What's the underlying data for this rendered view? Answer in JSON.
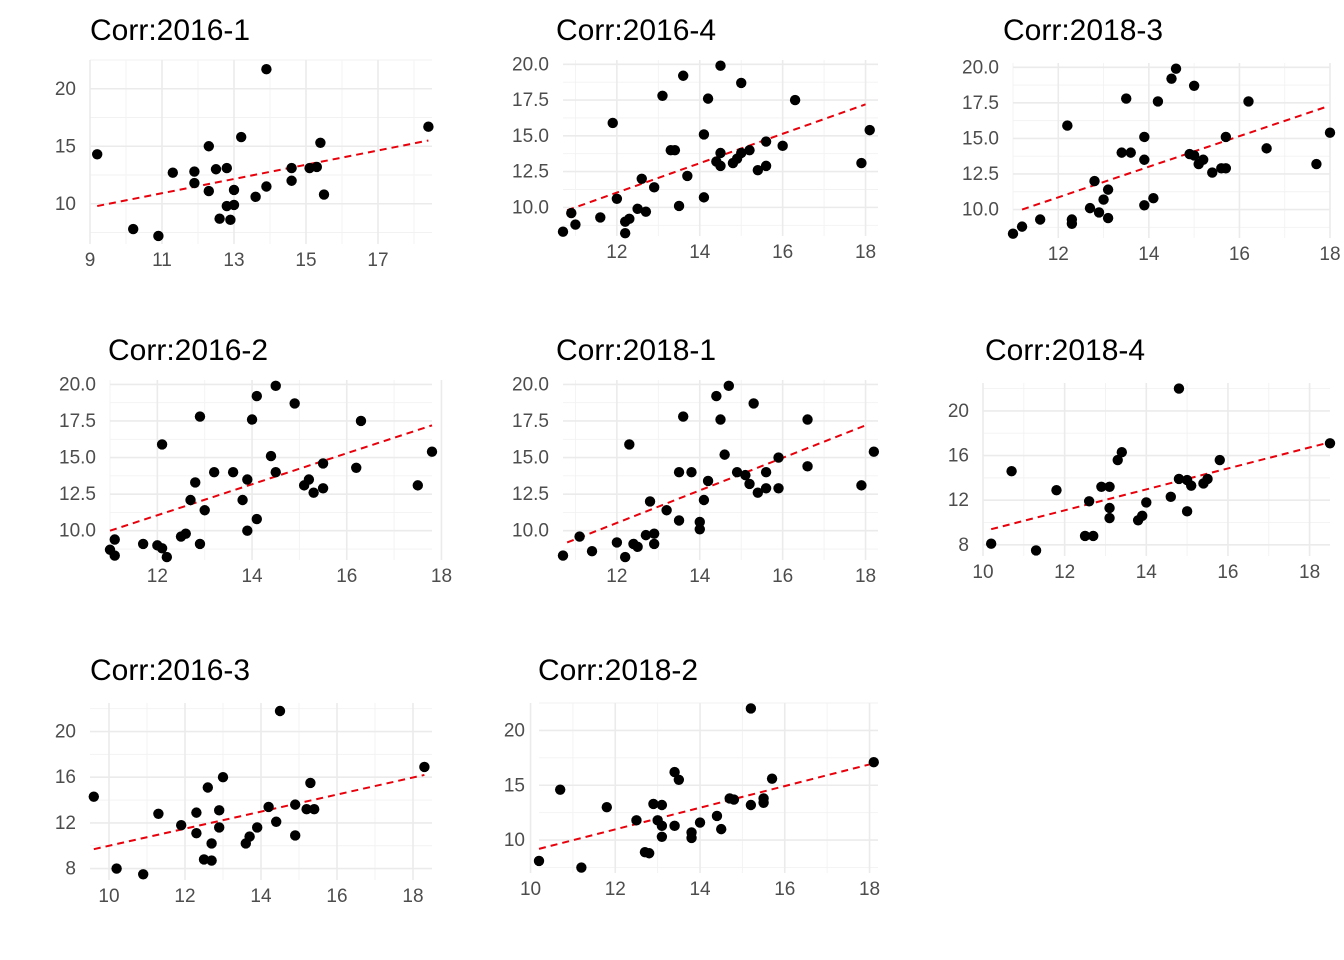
{
  "chart_data": [
    {
      "type": "scatter",
      "title": "Corr:2016-1",
      "xlim": [
        9,
        18.5
      ],
      "ylim": [
        6.5,
        22.5
      ],
      "x_ticks": [
        9,
        11,
        13,
        15,
        17
      ],
      "y_ticks": [
        10,
        15,
        20
      ],
      "x_tick_labels": [
        "9",
        "11",
        "13",
        "15",
        "17"
      ],
      "y_tick_labels": [
        "10",
        "15",
        "20"
      ],
      "points": [
        [
          9.2,
          14.3
        ],
        [
          10.2,
          7.8
        ],
        [
          10.9,
          7.2
        ],
        [
          11.3,
          12.7
        ],
        [
          11.9,
          11.8
        ],
        [
          11.9,
          12.8
        ],
        [
          12.3,
          11.1
        ],
        [
          12.3,
          15.0
        ],
        [
          12.5,
          13.0
        ],
        [
          12.6,
          8.7
        ],
        [
          12.8,
          9.8
        ],
        [
          12.8,
          13.1
        ],
        [
          12.9,
          8.6
        ],
        [
          13.0,
          11.2
        ],
        [
          13.0,
          9.9
        ],
        [
          13.2,
          15.8
        ],
        [
          13.6,
          10.6
        ],
        [
          13.9,
          11.5
        ],
        [
          13.9,
          21.7
        ],
        [
          14.6,
          12.0
        ],
        [
          14.6,
          13.1
        ],
        [
          15.1,
          13.1
        ],
        [
          15.3,
          13.2
        ],
        [
          15.4,
          15.3
        ],
        [
          15.5,
          10.8
        ],
        [
          18.4,
          16.7
        ]
      ],
      "fit": [
        [
          9.2,
          9.8
        ],
        [
          18.4,
          15.5
        ]
      ]
    },
    {
      "type": "scatter",
      "title": "Corr:2016-4",
      "xlim": [
        10.7,
        18.3
      ],
      "ylim": [
        8.0,
        20.3
      ],
      "x_ticks": [
        12,
        14,
        16,
        18
      ],
      "y_ticks": [
        10,
        12.5,
        15,
        17.5,
        20
      ],
      "x_tick_labels": [
        "12",
        "14",
        "16",
        "18"
      ],
      "y_tick_labels": [
        "10.0",
        "12.5",
        "15.0",
        "17.5",
        "20.0"
      ],
      "points": [
        [
          10.7,
          8.3
        ],
        [
          10.9,
          9.6
        ],
        [
          11.0,
          8.8
        ],
        [
          11.6,
          9.3
        ],
        [
          11.9,
          15.9
        ],
        [
          12.0,
          10.6
        ],
        [
          12.2,
          8.2
        ],
        [
          12.2,
          9.0
        ],
        [
          12.3,
          9.2
        ],
        [
          12.5,
          9.9
        ],
        [
          12.6,
          12.0
        ],
        [
          12.7,
          9.7
        ],
        [
          12.9,
          11.4
        ],
        [
          13.1,
          17.8
        ],
        [
          13.3,
          14.0
        ],
        [
          13.4,
          14.0
        ],
        [
          13.5,
          10.1
        ],
        [
          13.6,
          19.2
        ],
        [
          13.7,
          12.2
        ],
        [
          14.1,
          10.7
        ],
        [
          14.1,
          15.1
        ],
        [
          14.2,
          17.6
        ],
        [
          14.4,
          13.2
        ],
        [
          14.5,
          12.9
        ],
        [
          14.5,
          13.8
        ],
        [
          14.5,
          19.9
        ],
        [
          14.8,
          13.1
        ],
        [
          14.9,
          13.4
        ],
        [
          15.0,
          18.7
        ],
        [
          15.0,
          13.8
        ],
        [
          15.2,
          14.0
        ],
        [
          15.4,
          12.6
        ],
        [
          15.6,
          12.9
        ],
        [
          15.6,
          14.6
        ],
        [
          16.0,
          14.3
        ],
        [
          16.3,
          17.5
        ],
        [
          17.9,
          13.1
        ],
        [
          18.1,
          15.4
        ]
      ],
      "fit": [
        [
          10.8,
          9.8
        ],
        [
          18.0,
          17.2
        ]
      ]
    },
    {
      "type": "scatter",
      "title": "Corr:2018-3",
      "xlim": [
        11.0,
        18.0
      ],
      "ylim": [
        8.0,
        20.3
      ],
      "x_ticks": [
        12,
        14,
        16,
        18
      ],
      "y_ticks": [
        10,
        12.5,
        15,
        17.5,
        20
      ],
      "x_tick_labels": [
        "12",
        "14",
        "16",
        "18"
      ],
      "y_tick_labels": [
        "10.0",
        "12.5",
        "15.0",
        "17.5",
        "20.0"
      ],
      "points": [
        [
          11.0,
          8.3
        ],
        [
          11.2,
          8.8
        ],
        [
          11.6,
          9.3
        ],
        [
          12.2,
          15.9
        ],
        [
          12.3,
          9.0
        ],
        [
          12.3,
          9.3
        ],
        [
          12.7,
          10.1
        ],
        [
          12.8,
          12.0
        ],
        [
          12.9,
          9.8
        ],
        [
          13.0,
          10.7
        ],
        [
          13.1,
          11.4
        ],
        [
          13.1,
          9.4
        ],
        [
          13.4,
          14.0
        ],
        [
          13.5,
          17.8
        ],
        [
          13.6,
          14.0
        ],
        [
          13.9,
          15.1
        ],
        [
          13.9,
          13.5
        ],
        [
          13.9,
          10.3
        ],
        [
          14.1,
          10.8
        ],
        [
          14.2,
          17.6
        ],
        [
          14.5,
          19.2
        ],
        [
          14.6,
          19.9
        ],
        [
          14.9,
          13.9
        ],
        [
          15.0,
          18.7
        ],
        [
          15.0,
          13.8
        ],
        [
          15.1,
          13.2
        ],
        [
          15.2,
          13.5
        ],
        [
          15.4,
          12.6
        ],
        [
          15.6,
          12.9
        ],
        [
          15.7,
          12.9
        ],
        [
          15.7,
          15.1
        ],
        [
          16.2,
          17.6
        ],
        [
          16.6,
          14.3
        ],
        [
          17.7,
          13.2
        ],
        [
          18.0,
          15.4
        ]
      ],
      "fit": [
        [
          11.2,
          10.0
        ],
        [
          17.9,
          17.2
        ]
      ]
    },
    {
      "type": "scatter",
      "title": "Corr:2016-2",
      "xlim": [
        11.0,
        17.8
      ],
      "ylim": [
        8.0,
        20.3
      ],
      "x_ticks": [
        12,
        14,
        16,
        18
      ],
      "y_ticks": [
        10,
        12.5,
        15,
        17.5,
        20
      ],
      "x_tick_labels": [
        "12",
        "14",
        "16",
        "18"
      ],
      "y_tick_labels": [
        "10.0",
        "12.5",
        "15.0",
        "17.5",
        "20.0"
      ],
      "points": [
        [
          11.0,
          8.7
        ],
        [
          11.1,
          8.3
        ],
        [
          11.1,
          9.4
        ],
        [
          11.7,
          9.1
        ],
        [
          12.0,
          9.0
        ],
        [
          12.1,
          8.8
        ],
        [
          12.1,
          15.9
        ],
        [
          12.2,
          8.2
        ],
        [
          12.5,
          9.6
        ],
        [
          12.6,
          9.8
        ],
        [
          12.7,
          12.1
        ],
        [
          12.8,
          13.3
        ],
        [
          12.9,
          9.1
        ],
        [
          12.9,
          17.8
        ],
        [
          13.0,
          11.4
        ],
        [
          13.2,
          14.0
        ],
        [
          13.6,
          14.0
        ],
        [
          13.8,
          12.1
        ],
        [
          13.9,
          10.0
        ],
        [
          13.9,
          13.5
        ],
        [
          14.0,
          17.6
        ],
        [
          14.1,
          10.8
        ],
        [
          14.1,
          19.2
        ],
        [
          14.4,
          15.1
        ],
        [
          14.5,
          14.0
        ],
        [
          14.5,
          19.9
        ],
        [
          14.9,
          18.7
        ],
        [
          15.1,
          13.1
        ],
        [
          15.2,
          13.5
        ],
        [
          15.3,
          12.6
        ],
        [
          15.5,
          12.9
        ],
        [
          15.5,
          14.6
        ],
        [
          16.2,
          14.3
        ],
        [
          16.3,
          17.5
        ],
        [
          17.5,
          13.1
        ],
        [
          17.8,
          15.4
        ]
      ],
      "fit": [
        [
          11.0,
          10.0
        ],
        [
          17.8,
          17.2
        ]
      ]
    },
    {
      "type": "scatter",
      "title": "Corr:2018-1",
      "xlim": [
        10.7,
        18.3
      ],
      "ylim": [
        8.0,
        20.3
      ],
      "x_ticks": [
        12,
        14,
        16,
        18
      ],
      "y_ticks": [
        10,
        12.5,
        15,
        17.5,
        20
      ],
      "x_tick_labels": [
        "12",
        "14",
        "16",
        "18"
      ],
      "y_tick_labels": [
        "10.0",
        "12.5",
        "15.0",
        "17.5",
        "20.0"
      ],
      "points": [
        [
          10.7,
          8.3
        ],
        [
          11.1,
          9.6
        ],
        [
          11.4,
          8.6
        ],
        [
          12.0,
          9.2
        ],
        [
          12.2,
          8.2
        ],
        [
          12.3,
          15.9
        ],
        [
          12.4,
          9.1
        ],
        [
          12.5,
          8.9
        ],
        [
          12.7,
          9.7
        ],
        [
          12.8,
          12.0
        ],
        [
          12.9,
          9.8
        ],
        [
          12.9,
          9.1
        ],
        [
          13.2,
          11.4
        ],
        [
          13.5,
          14.0
        ],
        [
          13.5,
          10.7
        ],
        [
          13.6,
          17.8
        ],
        [
          13.8,
          14.0
        ],
        [
          14.0,
          10.6
        ],
        [
          14.0,
          10.1
        ],
        [
          14.1,
          12.1
        ],
        [
          14.2,
          13.4
        ],
        [
          14.4,
          19.2
        ],
        [
          14.5,
          17.6
        ],
        [
          14.6,
          15.2
        ],
        [
          14.7,
          19.9
        ],
        [
          14.9,
          14.0
        ],
        [
          15.1,
          13.8
        ],
        [
          15.2,
          13.2
        ],
        [
          15.3,
          18.7
        ],
        [
          15.4,
          12.6
        ],
        [
          15.6,
          12.9
        ],
        [
          15.6,
          14.0
        ],
        [
          15.9,
          12.9
        ],
        [
          15.9,
          15.0
        ],
        [
          16.6,
          17.6
        ],
        [
          16.6,
          14.4
        ],
        [
          17.9,
          13.1
        ],
        [
          18.2,
          15.4
        ]
      ],
      "fit": [
        [
          10.8,
          9.2
        ],
        [
          18.0,
          17.2
        ]
      ]
    },
    {
      "type": "scatter",
      "title": "Corr:2018-4",
      "xlim": [
        10.0,
        18.5
      ],
      "ylim": [
        7.0,
        22.5
      ],
      "x_ticks": [
        10,
        12,
        14,
        16,
        18
      ],
      "y_ticks": [
        8,
        12,
        16,
        20
      ],
      "x_tick_labels": [
        "10",
        "12",
        "14",
        "16",
        "18"
      ],
      "y_tick_labels": [
        "8",
        "12",
        "16",
        "20"
      ],
      "points": [
        [
          10.2,
          8.1
        ],
        [
          10.7,
          14.6
        ],
        [
          11.3,
          7.5
        ],
        [
          11.8,
          12.9
        ],
        [
          12.5,
          8.8
        ],
        [
          12.6,
          11.9
        ],
        [
          12.7,
          8.8
        ],
        [
          12.9,
          13.2
        ],
        [
          13.1,
          10.4
        ],
        [
          13.1,
          11.3
        ],
        [
          13.1,
          13.2
        ],
        [
          13.3,
          15.6
        ],
        [
          13.4,
          16.3
        ],
        [
          13.8,
          10.2
        ],
        [
          13.9,
          10.6
        ],
        [
          14.0,
          11.8
        ],
        [
          14.6,
          12.3
        ],
        [
          14.8,
          13.9
        ],
        [
          14.8,
          22.0
        ],
        [
          15.0,
          11.0
        ],
        [
          15.0,
          13.8
        ],
        [
          15.1,
          13.3
        ],
        [
          15.4,
          13.5
        ],
        [
          15.5,
          13.9
        ],
        [
          15.8,
          15.6
        ],
        [
          18.5,
          17.1
        ]
      ],
      "fit": [
        [
          10.2,
          9.4
        ],
        [
          18.4,
          17.1
        ]
      ]
    },
    {
      "type": "scatter",
      "title": "Corr:2016-3",
      "xlim": [
        9.5,
        18.5
      ],
      "ylim": [
        7.0,
        22.5
      ],
      "x_ticks": [
        10,
        12,
        14,
        16,
        18
      ],
      "y_ticks": [
        8,
        12,
        16,
        20
      ],
      "x_tick_labels": [
        "10",
        "12",
        "14",
        "16",
        "18"
      ],
      "y_tick_labels": [
        "8",
        "12",
        "16",
        "20"
      ],
      "points": [
        [
          9.6,
          14.3
        ],
        [
          10.2,
          8.0
        ],
        [
          10.9,
          7.5
        ],
        [
          11.3,
          12.8
        ],
        [
          11.9,
          11.8
        ],
        [
          12.3,
          12.9
        ],
        [
          12.3,
          11.1
        ],
        [
          12.5,
          8.8
        ],
        [
          12.6,
          15.1
        ],
        [
          12.7,
          10.2
        ],
        [
          12.7,
          8.7
        ],
        [
          12.9,
          11.6
        ],
        [
          12.9,
          13.1
        ],
        [
          13.0,
          16.0
        ],
        [
          13.6,
          10.2
        ],
        [
          13.7,
          10.8
        ],
        [
          13.9,
          11.6
        ],
        [
          14.2,
          13.4
        ],
        [
          14.4,
          12.1
        ],
        [
          14.5,
          21.8
        ],
        [
          14.9,
          10.9
        ],
        [
          14.9,
          13.6
        ],
        [
          15.2,
          13.2
        ],
        [
          15.3,
          15.5
        ],
        [
          15.4,
          13.2
        ],
        [
          18.3,
          16.9
        ]
      ],
      "fit": [
        [
          9.6,
          9.7
        ],
        [
          18.3,
          16.2
        ]
      ]
    },
    {
      "type": "scatter",
      "title": "Corr:2018-2",
      "xlim": [
        10.2,
        18.2
      ],
      "ylim": [
        7.0,
        22.5
      ],
      "x_ticks": [
        10,
        12,
        14,
        16,
        18
      ],
      "y_ticks": [
        10,
        15,
        20
      ],
      "x_tick_labels": [
        "10",
        "12",
        "14",
        "16",
        "18"
      ],
      "y_tick_labels": [
        "10",
        "15",
        "20"
      ],
      "points": [
        [
          10.2,
          8.1
        ],
        [
          10.7,
          14.6
        ],
        [
          11.2,
          7.5
        ],
        [
          11.8,
          13.0
        ],
        [
          12.5,
          11.8
        ],
        [
          12.7,
          8.9
        ],
        [
          12.8,
          8.8
        ],
        [
          12.9,
          13.3
        ],
        [
          13.0,
          11.8
        ],
        [
          13.1,
          10.3
        ],
        [
          13.1,
          13.2
        ],
        [
          13.1,
          11.3
        ],
        [
          13.4,
          16.2
        ],
        [
          13.4,
          11.3
        ],
        [
          13.5,
          15.5
        ],
        [
          13.8,
          10.2
        ],
        [
          13.8,
          10.7
        ],
        [
          14.0,
          11.6
        ],
        [
          14.4,
          12.2
        ],
        [
          14.5,
          11.0
        ],
        [
          14.7,
          13.8
        ],
        [
          14.8,
          13.7
        ],
        [
          15.2,
          13.2
        ],
        [
          15.2,
          22.0
        ],
        [
          15.5,
          13.8
        ],
        [
          15.5,
          13.4
        ],
        [
          15.7,
          15.6
        ],
        [
          18.1,
          17.1
        ]
      ],
      "fit": [
        [
          10.2,
          9.2
        ],
        [
          18.1,
          17.0
        ]
      ]
    }
  ]
}
